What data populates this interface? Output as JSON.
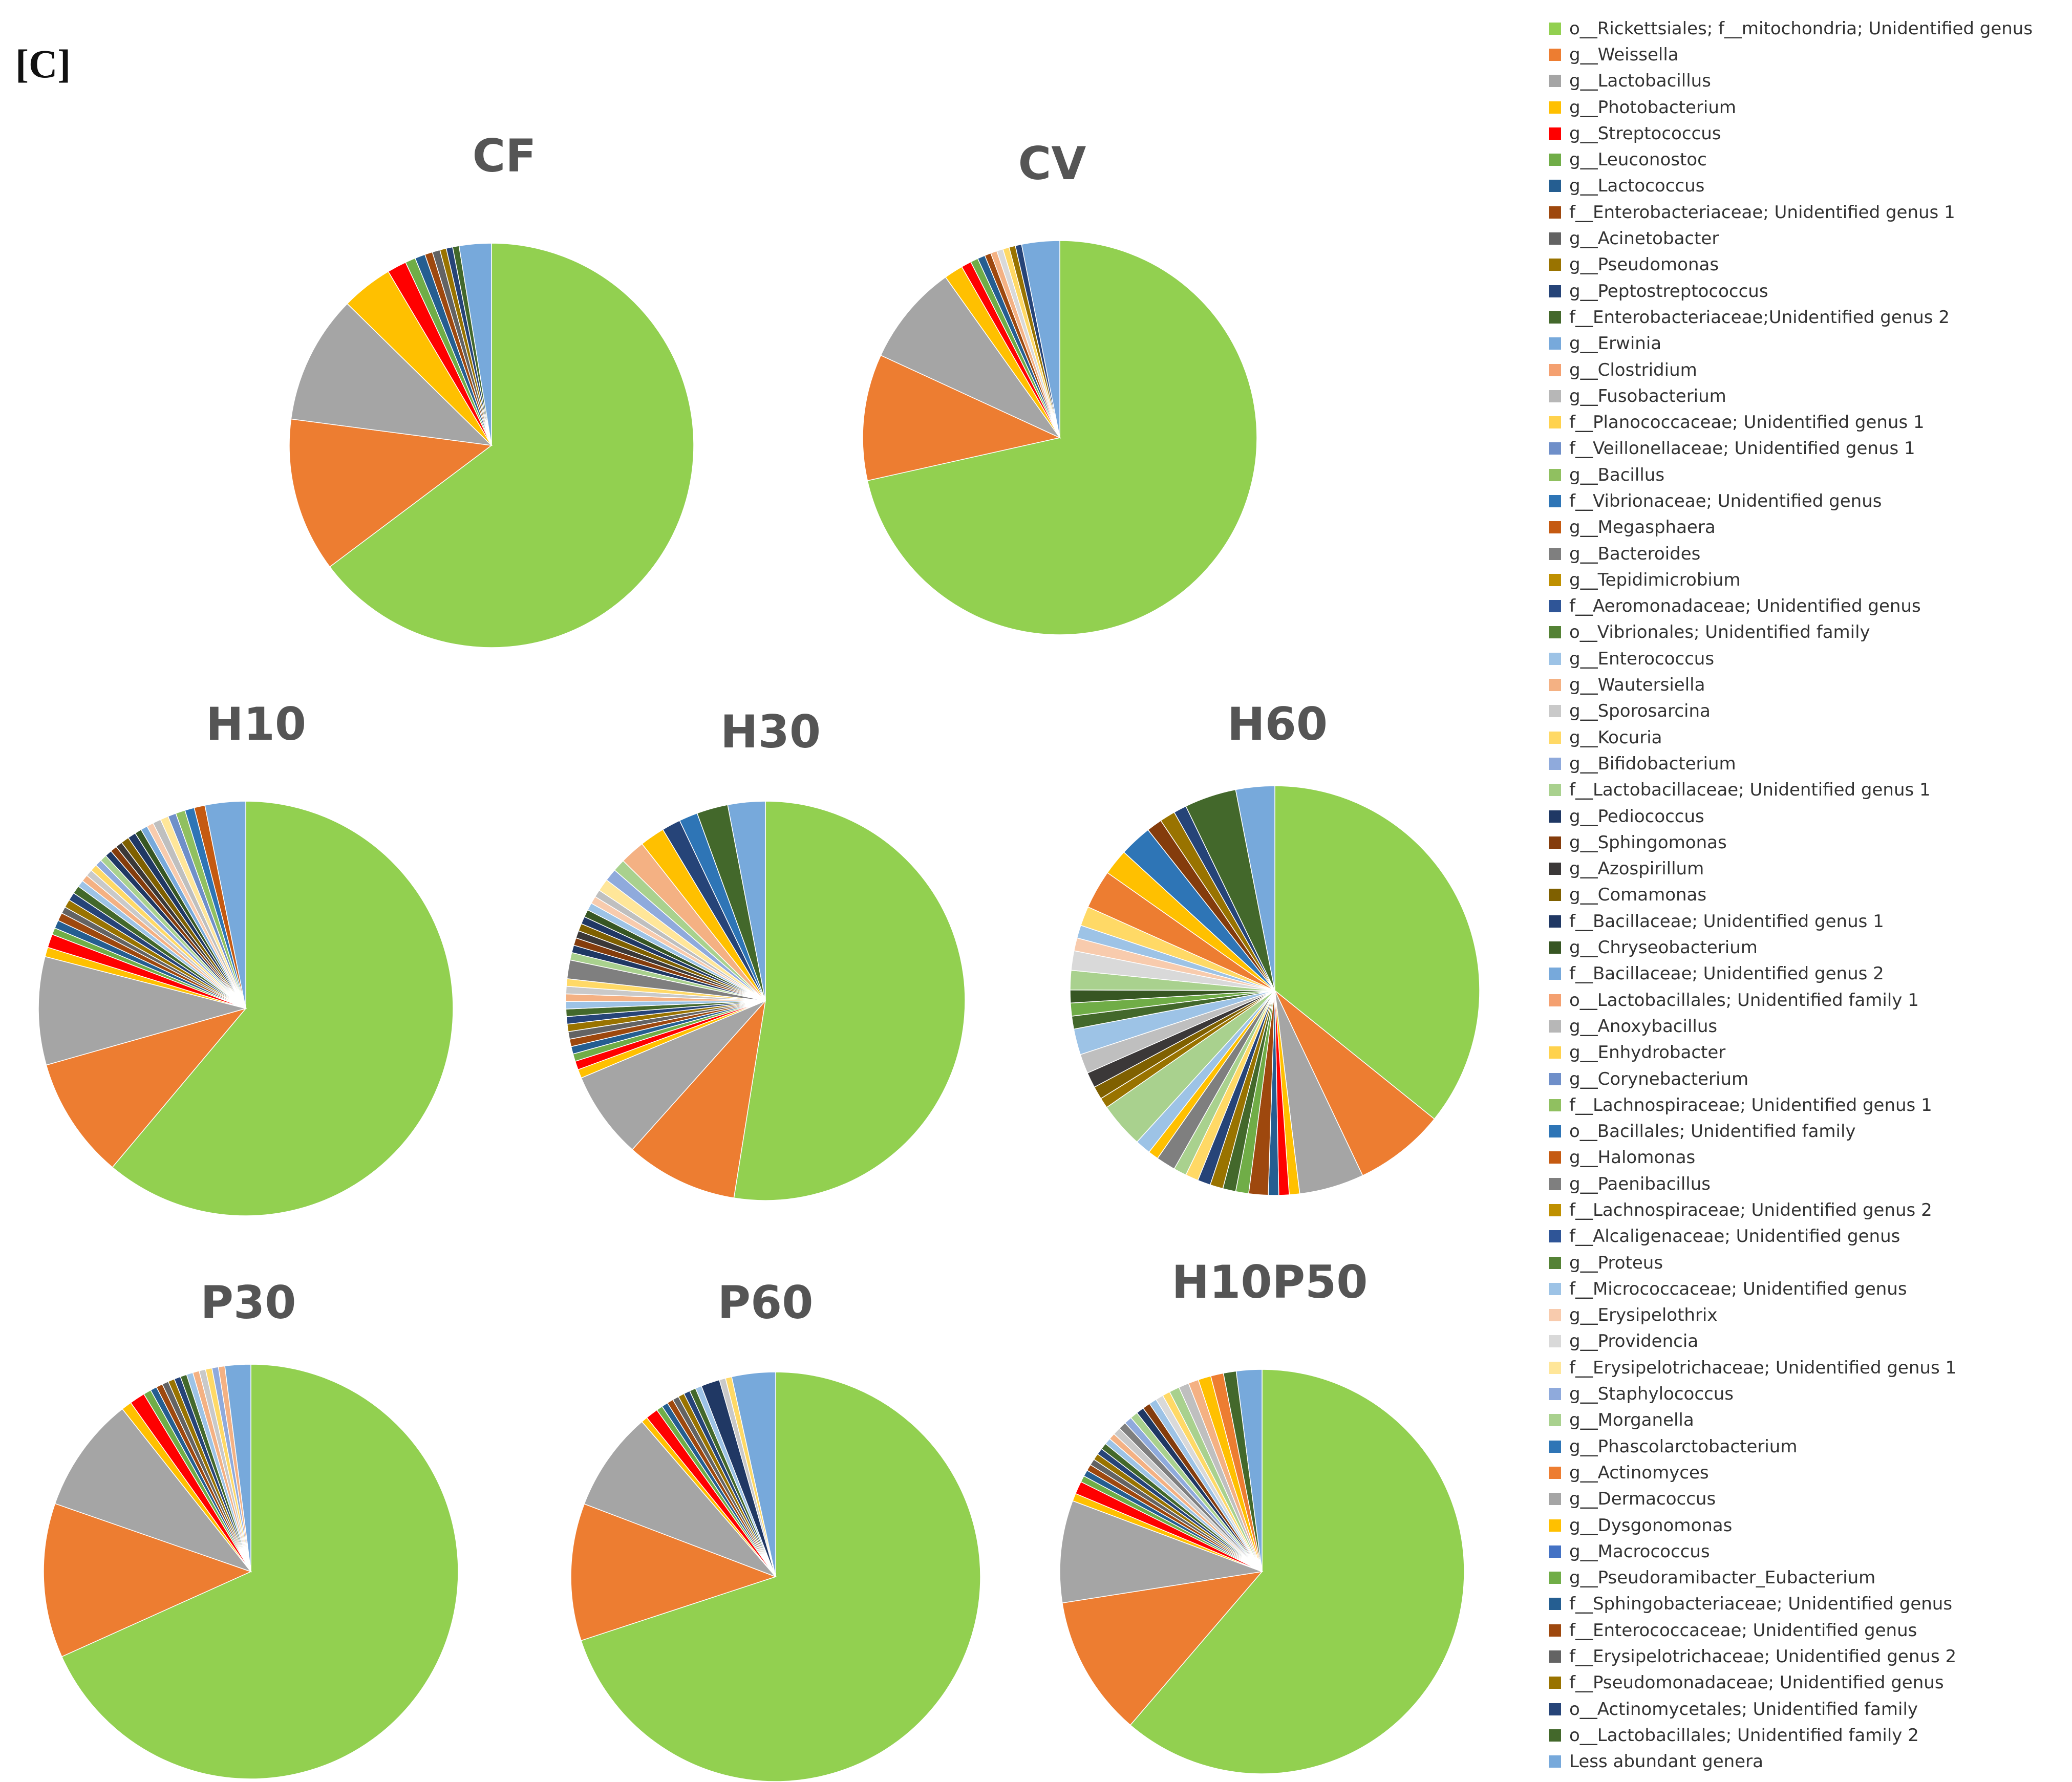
{
  "panel_label": "[C]",
  "chart_data": {
    "type": "pie",
    "charts": [
      {
        "title": "CF",
        "values": [
          63,
          12,
          10,
          4,
          1.5,
          0.8,
          0.8,
          0.6,
          0.6,
          0.5,
          0.5,
          0.5,
          2.5
        ],
        "palette": [
          "#92d050",
          "#ed7d31",
          "#a5a5a5",
          "#ffc000",
          "#ff0000",
          "#70ad47",
          "#255e91",
          "#9e480e",
          "#636363",
          "#997300",
          "#264478",
          "#43682b",
          "#77a9db"
        ]
      },
      {
        "title": "CV",
        "values": [
          69,
          10,
          8,
          1.5,
          0.8,
          0.6,
          0.6,
          0.5,
          0.5,
          0.5,
          0.5,
          0.5,
          0.5,
          3
        ],
        "palette": [
          "#92d050",
          "#ed7d31",
          "#a5a5a5",
          "#ffc000",
          "#ff0000",
          "#70ad47",
          "#255e91",
          "#9e480e",
          "#f4b183",
          "#d9d9d9",
          "#ffd966",
          "#997300",
          "#264478",
          "#77a9db"
        ]
      },
      {
        "title": "H10",
        "values": [
          58,
          9,
          8,
          0.7,
          1,
          0.5,
          0.6,
          0.6,
          0.5,
          0.6,
          0.6,
          0.6,
          0.5,
          0.5,
          0.5,
          0.5,
          0.5,
          0.5,
          0.5,
          0.5,
          0.5,
          0.6,
          0.6,
          0.5,
          0.5,
          0.5,
          0.6,
          0.6,
          0.6,
          0.7,
          0.7,
          0.8,
          3
        ],
        "palette": [
          "#92d050",
          "#ed7d31",
          "#a5a5a5",
          "#ffc000",
          "#ff0000",
          "#70ad47",
          "#255e91",
          "#9e480e",
          "#636363",
          "#997300",
          "#264478",
          "#43682b",
          "#9dc3e6",
          "#f4b183",
          "#c9c9c9",
          "#ffd966",
          "#8faadc",
          "#a9d18e",
          "#1f3864",
          "#843c0c",
          "#3b3838",
          "#7f6000",
          "#203864",
          "#375623",
          "#77a9db",
          "#f8cbad",
          "#bfbfbf",
          "#ffe699",
          "#6f8fc9",
          "#90c060",
          "#2e75b6",
          "#c55a11",
          "#77a9db"
        ]
      },
      {
        "title": "H30",
        "values": [
          52,
          9,
          7,
          0.7,
          0.7,
          0.6,
          0.6,
          0.6,
          0.6,
          0.6,
          0.6,
          0.6,
          0.6,
          0.6,
          0.6,
          0.6,
          1.5,
          0.6,
          0.6,
          0.6,
          0.6,
          0.6,
          0.6,
          0.6,
          0.6,
          0.6,
          0.6,
          1,
          1,
          1,
          2,
          2,
          1.5,
          1.5,
          2.5,
          3
        ],
        "palette": [
          "#92d050",
          "#ed7d31",
          "#a5a5a5",
          "#ffc000",
          "#ff0000",
          "#70ad47",
          "#255e91",
          "#9e480e",
          "#636363",
          "#997300",
          "#264478",
          "#43682b",
          "#9dc3e6",
          "#f4b183",
          "#c9c9c9",
          "#ffd966",
          "#7f7f7f",
          "#a9d18e",
          "#1f3864",
          "#843c0c",
          "#3b3838",
          "#7f6000",
          "#203864",
          "#375623",
          "#9dc3e6",
          "#f8cbad",
          "#bfbfbf",
          "#ffe699",
          "#8faadc",
          "#a9d18e",
          "#f4b183",
          "#ffc000",
          "#264478",
          "#2e75b6",
          "#43682b",
          "#77a9db"
        ]
      },
      {
        "title": "H60",
        "values": [
          35,
          7,
          5,
          0.8,
          0.8,
          0.8,
          1.5,
          1,
          1,
          1,
          1,
          1,
          1,
          1.5,
          0.8,
          1.2,
          3.5,
          0.8,
          1,
          1.2,
          1.5,
          2,
          1,
          1,
          1,
          1.5,
          1.5,
          1,
          1,
          1.5,
          3,
          2,
          2.5,
          1.2,
          1.2,
          1,
          4,
          3
        ],
        "palette": [
          "#92d050",
          "#ed7d31",
          "#a5a5a5",
          "#ffc000",
          "#ff0000",
          "#255e91",
          "#9e480e",
          "#70ad47",
          "#43682b",
          "#997300",
          "#264478",
          "#ffd966",
          "#a9d18e",
          "#7f7f7f",
          "#ffc000",
          "#9dc3e6",
          "#a9d18e",
          "#997300",
          "#7f6000",
          "#3b3838",
          "#bfbfbf",
          "#9dc3e6",
          "#43682b",
          "#70ad47",
          "#375623",
          "#a9d18e",
          "#d9d9d9",
          "#f8cbad",
          "#9dc3e6",
          "#ffd966",
          "#ed7d31",
          "#ffc000",
          "#2e75b6",
          "#843c0c",
          "#997300",
          "#264478",
          "#43682b",
          "#77a9db"
        ]
      },
      {
        "title": "P30",
        "values": [
          68,
          12,
          9,
          0.8,
          1.2,
          0.6,
          0.5,
          0.5,
          0.5,
          0.5,
          0.5,
          0.5,
          0.5,
          0.5,
          0.5,
          0.5,
          0.5,
          0.5,
          2
        ],
        "palette": [
          "#92d050",
          "#ed7d31",
          "#a5a5a5",
          "#ffc000",
          "#ff0000",
          "#70ad47",
          "#255e91",
          "#9e480e",
          "#636363",
          "#997300",
          "#264478",
          "#43682b",
          "#9dc3e6",
          "#f4b183",
          "#c9c9c9",
          "#ffd966",
          "#8faadc",
          "#f4b183",
          "#77a9db"
        ]
      },
      {
        "title": "P60",
        "values": [
          71,
          11,
          8,
          0.5,
          1,
          0.5,
          0.5,
          0.5,
          0.5,
          0.5,
          0.5,
          0.5,
          0.5,
          1.5,
          0.5,
          0.5,
          3.5
        ],
        "palette": [
          "#92d050",
          "#ed7d31",
          "#a5a5a5",
          "#ffc000",
          "#ff0000",
          "#70ad47",
          "#255e91",
          "#9e480e",
          "#636363",
          "#997300",
          "#264478",
          "#43682b",
          "#9dc3e6",
          "#203864",
          "#c9c9c9",
          "#ffd966",
          "#77a9db"
        ]
      },
      {
        "title": "H10P50",
        "values": [
          60,
          11,
          8,
          0.6,
          1,
          0.5,
          0.5,
          0.5,
          0.5,
          0.5,
          0.5,
          0.5,
          0.5,
          0.5,
          0.6,
          0.6,
          0.6,
          0.6,
          0.6,
          0.6,
          0.6,
          0.6,
          0.6,
          0.8,
          0.8,
          0.8,
          1,
          1,
          1,
          2
        ],
        "palette": [
          "#92d050",
          "#ed7d31",
          "#a5a5a5",
          "#ffc000",
          "#ff0000",
          "#70ad47",
          "#255e91",
          "#9e480e",
          "#636363",
          "#997300",
          "#264478",
          "#43682b",
          "#9dc3e6",
          "#f4b183",
          "#c9c9c9",
          "#7f7f7f",
          "#8faadc",
          "#a9d18e",
          "#1f3864",
          "#843c0c",
          "#9dc3e6",
          "#d9d9d9",
          "#ffd966",
          "#a9d18e",
          "#bfbfbf",
          "#f4b183",
          "#ffc000",
          "#ed7d31",
          "#43682b",
          "#77a9db"
        ]
      }
    ],
    "legend": [
      {
        "label": "o__Rickettsiales; f__mitochondria; Unidentified genus",
        "color": "#92d050"
      },
      {
        "label": "g__Weissella",
        "color": "#ed7d31"
      },
      {
        "label": "g__Lactobacillus",
        "color": "#a5a5a5"
      },
      {
        "label": "g__Photobacterium",
        "color": "#ffc000"
      },
      {
        "label": "g__Streptococcus",
        "color": "#ff0000"
      },
      {
        "label": "g__Leuconostoc",
        "color": "#70ad47"
      },
      {
        "label": "g__Lactococcus",
        "color": "#255e91"
      },
      {
        "label": "f__Enterobacteriaceae; Unidentified genus 1",
        "color": "#9e480e"
      },
      {
        "label": "g__Acinetobacter",
        "color": "#636363"
      },
      {
        "label": "g__Pseudomonas",
        "color": "#997300"
      },
      {
        "label": "g__Peptostreptococcus",
        "color": "#264478"
      },
      {
        "label": "f__Enterobacteriaceae;Unidentified genus 2",
        "color": "#43682b"
      },
      {
        "label": "g__Erwinia",
        "color": "#77a9db"
      },
      {
        "label": "g__Clostridium",
        "color": "#f4a070"
      },
      {
        "label": "g__Fusobacterium",
        "color": "#b7b7b7"
      },
      {
        "label": "f__Planococcaceae; Unidentified genus 1",
        "color": "#ffd24d"
      },
      {
        "label": "f__Veillonellaceae; Unidentified genus 1",
        "color": "#6f8fc9"
      },
      {
        "label": "g__Bacillus",
        "color": "#90c060"
      },
      {
        "label": "f__Vibrionaceae; Unidentified genus",
        "color": "#2e75b6"
      },
      {
        "label": "g__Megasphaera",
        "color": "#c55a11"
      },
      {
        "label": "g__Bacteroides",
        "color": "#7f7f7f"
      },
      {
        "label": "g__Tepidimicrobium",
        "color": "#bf9000"
      },
      {
        "label": "f__Aeromonadaceae; Unidentified genus",
        "color": "#2f5597"
      },
      {
        "label": "o__Vibrionales; Unidentified family",
        "color": "#548235"
      },
      {
        "label": "g__Enterococcus",
        "color": "#9dc3e6"
      },
      {
        "label": "g__Wautersiella",
        "color": "#f4b183"
      },
      {
        "label": "g__Sporosarcina",
        "color": "#c9c9c9"
      },
      {
        "label": "g__Kocuria",
        "color": "#ffd966"
      },
      {
        "label": "g__Bifidobacterium",
        "color": "#8faadc"
      },
      {
        "label": "f__Lactobacillaceae; Unidentified genus 1",
        "color": "#a9d18e"
      },
      {
        "label": "g__Pediococcus",
        "color": "#1f3864"
      },
      {
        "label": "g__Sphingomonas",
        "color": "#843c0c"
      },
      {
        "label": "g__Azospirillum",
        "color": "#3b3838"
      },
      {
        "label": "g__Comamonas",
        "color": "#7f6000"
      },
      {
        "label": "f__Bacillaceae; Unidentified genus 1",
        "color": "#203864"
      },
      {
        "label": "g__Chryseobacterium",
        "color": "#375623"
      },
      {
        "label": "f__Bacillaceae; Unidentified genus 2",
        "color": "#77a9db"
      },
      {
        "label": "o__Lactobacillales; Unidentified family 1",
        "color": "#f4a070"
      },
      {
        "label": "g__Anoxybacillus",
        "color": "#b7b7b7"
      },
      {
        "label": "g__Enhydrobacter",
        "color": "#ffd24d"
      },
      {
        "label": "g__Corynebacterium",
        "color": "#6f8fc9"
      },
      {
        "label": "f__Lachnospiraceae; Unidentified genus 1",
        "color": "#90c060"
      },
      {
        "label": "o__Bacillales; Unidentified family",
        "color": "#2e75b6"
      },
      {
        "label": "g__Halomonas",
        "color": "#c55a11"
      },
      {
        "label": "g__Paenibacillus",
        "color": "#7f7f7f"
      },
      {
        "label": "f__Lachnospiraceae; Unidentified genus 2",
        "color": "#bf9000"
      },
      {
        "label": "f__Alcaligenaceae; Unidentified genus",
        "color": "#2f5597"
      },
      {
        "label": "g__Proteus",
        "color": "#548235"
      },
      {
        "label": "f__Micrococcaceae; Unidentified genus",
        "color": "#9dc3e6"
      },
      {
        "label": "g__Erysipelothrix",
        "color": "#f8cbad"
      },
      {
        "label": "g__Providencia",
        "color": "#d9d9d9"
      },
      {
        "label": "f__Erysipelotrichaceae; Unidentified genus 1",
        "color": "#ffe699"
      },
      {
        "label": "g__Staphylococcus",
        "color": "#8faadc"
      },
      {
        "label": "g__Morganella",
        "color": "#a9d18e"
      },
      {
        "label": "g__Phascolarctobacterium",
        "color": "#2e75b6"
      },
      {
        "label": "g__Actinomyces",
        "color": "#ed7d31"
      },
      {
        "label": "g__Dermacoccus",
        "color": "#a5a5a5"
      },
      {
        "label": "g__Dysgonomonas",
        "color": "#ffc000"
      },
      {
        "label": "g__Macrococcus",
        "color": "#4472c4"
      },
      {
        "label": "g__Pseudoramibacter_Eubacterium",
        "color": "#70ad47"
      },
      {
        "label": "f__Sphingobacteriaceae; Unidentified genus",
        "color": "#255e91"
      },
      {
        "label": "f__Enterococcaceae; Unidentified genus",
        "color": "#9e480e"
      },
      {
        "label": "f__Erysipelotrichaceae; Unidentified genus 2",
        "color": "#636363"
      },
      {
        "label": "f__Pseudomonadaceae; Unidentified genus",
        "color": "#997300"
      },
      {
        "label": "o__Actinomycetales; Unidentified family",
        "color": "#264478"
      },
      {
        "label": "o__Lactobacillales; Unidentified family 2",
        "color": "#43682b"
      },
      {
        "label": "Less abundant genera",
        "color": "#77a9db"
      }
    ]
  }
}
